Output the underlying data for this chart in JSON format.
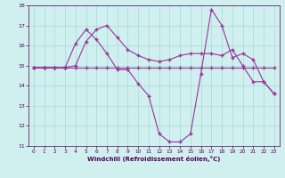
{
  "xlabel": "Windchill (Refroidissement éolien,°C)",
  "bg_color": "#cff0ee",
  "grid_color": "#aadddd",
  "line_color": "#993399",
  "ylim": [
    11,
    18
  ],
  "xlim": [
    -0.5,
    23.5
  ],
  "yticks": [
    11,
    12,
    13,
    14,
    15,
    16,
    17,
    18
  ],
  "xticks": [
    0,
    1,
    2,
    3,
    4,
    5,
    6,
    7,
    8,
    9,
    10,
    11,
    12,
    13,
    14,
    15,
    16,
    17,
    18,
    19,
    20,
    21,
    22,
    23
  ],
  "line1_x": [
    0,
    1,
    2,
    3,
    4,
    5,
    6,
    7,
    8,
    9,
    10,
    11,
    12,
    13,
    14,
    15,
    16,
    17,
    18,
    19,
    20,
    21,
    22,
    23
  ],
  "line1_y": [
    14.9,
    14.9,
    14.9,
    14.9,
    14.9,
    14.9,
    14.9,
    14.9,
    14.9,
    14.9,
    14.9,
    14.9,
    14.9,
    14.9,
    14.9,
    14.9,
    14.9,
    14.9,
    14.9,
    14.9,
    14.9,
    14.9,
    14.9,
    14.9
  ],
  "line2_x": [
    0,
    1,
    2,
    3,
    4,
    5,
    6,
    7,
    8,
    9,
    10,
    11,
    12,
    13,
    14,
    15,
    16,
    17,
    18,
    19,
    20,
    21,
    22,
    23
  ],
  "line2_y": [
    14.9,
    14.9,
    14.9,
    14.9,
    15.0,
    16.2,
    16.8,
    17.0,
    16.4,
    15.8,
    15.5,
    15.3,
    15.2,
    15.3,
    15.5,
    15.6,
    15.6,
    15.6,
    15.5,
    15.8,
    15.0,
    14.2,
    14.2,
    13.6
  ],
  "line3_x": [
    0,
    1,
    2,
    3,
    4,
    5,
    6,
    7,
    8,
    9,
    10,
    11,
    12,
    13,
    14,
    15,
    16,
    17,
    18,
    19,
    20,
    21,
    22,
    23
  ],
  "line3_y": [
    14.9,
    14.9,
    14.9,
    14.9,
    16.1,
    16.8,
    16.3,
    15.6,
    14.8,
    14.8,
    14.1,
    13.5,
    11.6,
    11.2,
    11.2,
    11.6,
    14.6,
    17.8,
    17.0,
    15.4,
    15.6,
    15.3,
    14.2,
    13.6
  ]
}
